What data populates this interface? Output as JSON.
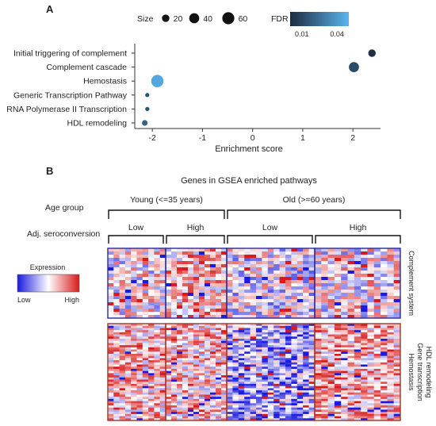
{
  "panel_a_letter": "A",
  "panel_b_letter": "B",
  "chart_data": [
    {
      "type": "scatter",
      "panel": "A",
      "xlabel": "Enrichment score",
      "xlim": [
        -2.35,
        2.55
      ],
      "xticks": [
        -2,
        -1,
        0,
        1,
        2
      ],
      "xtick_labels": [
        "-2",
        "-1",
        "0",
        "1",
        "2"
      ],
      "grid": false,
      "legend_placement": "top",
      "size_legend": {
        "title": "Size",
        "values": [
          20,
          40,
          60
        ]
      },
      "color_legend": {
        "title": "FDR",
        "tick_values": [
          0.01,
          0.04
        ],
        "tick_labels": [
          "0.01",
          "0.04"
        ],
        "low_color": "#1c2b3e",
        "high_color": "#5ab4f0",
        "range": [
          0,
          0.05
        ]
      },
      "categories": [
        "Initial triggering of complement",
        "Complement cascade",
        "Hemostasis",
        "Generic Transcription Pathway",
        "RNA Polymerase II Transcription",
        "HDL remodeling"
      ],
      "points": [
        {
          "pathway": "Initial triggering of complement",
          "x": 2.38,
          "size": 14,
          "fdr": 0.002
        },
        {
          "pathway": "Complement cascade",
          "x": 2.02,
          "size": 28,
          "fdr": 0.012
        },
        {
          "pathway": "Hemostasis",
          "x": -1.9,
          "size": 44,
          "fdr": 0.045
        },
        {
          "pathway": "Generic Transcription Pathway",
          "x": -2.1,
          "size": 3,
          "fdr": 0.015
        },
        {
          "pathway": "RNA Polymerase II Transcription",
          "x": -2.1,
          "size": 3,
          "fdr": 0.015
        },
        {
          "pathway": "HDL remodeling",
          "x": -2.15,
          "size": 7,
          "fdr": 0.02
        }
      ]
    },
    {
      "type": "heatmap",
      "panel": "B",
      "title": "Genes in GSEA enriched pathways",
      "row_header_age": "Age group",
      "row_header_sero": "Adj. seroconversion",
      "age_groups": [
        {
          "label": "Young (<=35 years)",
          "sero": [
            "Low",
            "High"
          ]
        },
        {
          "label": "Old (>=60 years)",
          "sero": [
            "Low",
            "High"
          ]
        }
      ],
      "row_groups": [
        {
          "labels": [
            "Complement system"
          ],
          "border_color": "#2a2a9a"
        },
        {
          "labels": [
            "Hemostasis",
            "Gene transcription",
            "HDL remodeling"
          ],
          "border_color": "#a0362a"
        }
      ],
      "color_scale": {
        "title": "Expression",
        "low_label": "Low",
        "high_label": "High",
        "low_color": "#1a1ae0",
        "mid_color": "#ffffff",
        "high_color": "#d91a1a"
      },
      "column_counts": [
        10,
        11,
        15,
        13
      ],
      "row_counts": [
        22,
        45
      ]
    }
  ]
}
